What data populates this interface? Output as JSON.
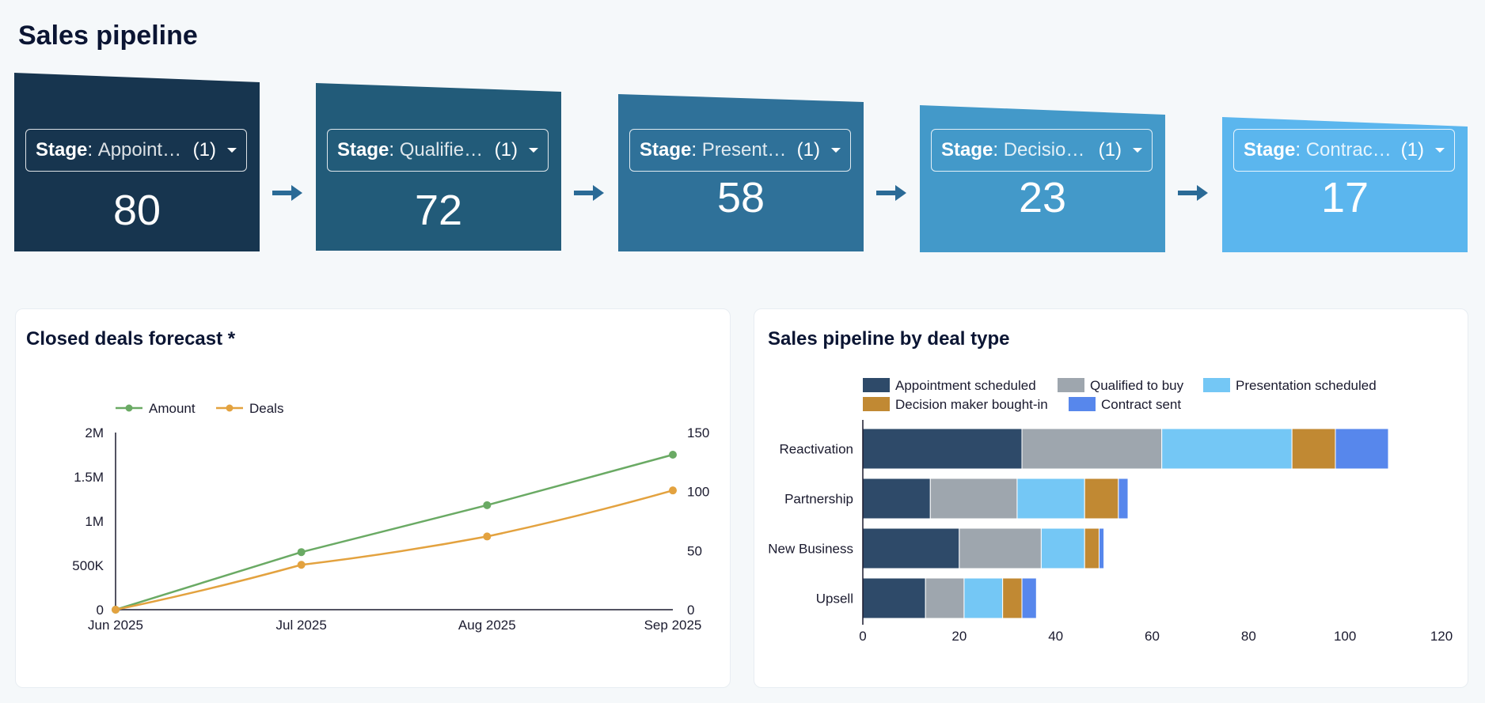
{
  "page_title": "Sales pipeline",
  "funnel": {
    "stages": [
      {
        "label": "Stage",
        "value": "Appointment scheduled",
        "count": "(1)",
        "number": "80",
        "color": "#17354f"
      },
      {
        "label": "Stage",
        "value": "Qualified to buy",
        "count": "(1)",
        "number": "72",
        "color": "#225b79"
      },
      {
        "label": "Stage",
        "value": "Presentation scheduled",
        "count": "(1)",
        "number": "58",
        "color": "#2f7199"
      },
      {
        "label": "Stage",
        "value": "Decision maker bought-in",
        "count": "(1)",
        "number": "23",
        "color": "#4399c9"
      },
      {
        "label": "Stage",
        "value": "Contract sent",
        "count": "(1)",
        "number": "17",
        "color": "#5bb6ee"
      }
    ],
    "arrow_color": "#2a6a96"
  },
  "panels": {
    "forecast_title": "Closed deals forecast *",
    "deal_type_title": "Sales pipeline by deal type"
  },
  "chart_data": [
    {
      "type": "line",
      "title": "Closed deals forecast *",
      "categories": [
        "Jun 2025",
        "Jul 2025",
        "Aug 2025",
        "Sep 2025"
      ],
      "series": [
        {
          "name": "Amount",
          "axis": "left",
          "color": "#6aaa64",
          "values": [
            0,
            650000,
            1180000,
            1750000
          ]
        },
        {
          "name": "Deals",
          "axis": "right",
          "color": "#e3a23f",
          "values": [
            0,
            38,
            62,
            101
          ]
        }
      ],
      "left_axis": {
        "min": 0,
        "max": 2000000,
        "ticks": [
          0,
          500000,
          1000000,
          1500000,
          2000000
        ],
        "tick_labels": [
          "0",
          "500K",
          "1M",
          "1.5M",
          "2M"
        ]
      },
      "right_axis": {
        "min": 0,
        "max": 150,
        "ticks": [
          0,
          50,
          100,
          150
        ],
        "tick_labels": [
          "0",
          "50",
          "100",
          "150"
        ]
      },
      "legend": "top-left",
      "grid": false
    },
    {
      "type": "bar",
      "orientation": "horizontal",
      "stacked": true,
      "title": "Sales pipeline by deal type",
      "categories": [
        "Reactivation",
        "Partnership",
        "New Business",
        "Upsell"
      ],
      "series": [
        {
          "name": "Appointment scheduled",
          "color": "#2e4a69",
          "values": [
            33,
            14,
            20,
            13
          ]
        },
        {
          "name": "Qualified to buy",
          "color": "#9ea6ae",
          "values": [
            29,
            18,
            17,
            8
          ]
        },
        {
          "name": "Presentation scheduled",
          "color": "#74c7f5",
          "values": [
            27,
            14,
            9,
            8
          ]
        },
        {
          "name": "Decision maker bought-in",
          "color": "#c18933",
          "values": [
            9,
            7,
            3,
            4
          ]
        },
        {
          "name": "Contract sent",
          "color": "#5787ec",
          "values": [
            11,
            2,
            1,
            3
          ]
        }
      ],
      "x_axis": {
        "min": 0,
        "max": 120,
        "ticks": [
          0,
          20,
          40,
          60,
          80,
          100,
          120
        ],
        "tick_labels": [
          "0",
          "20",
          "40",
          "60",
          "80",
          "100",
          "120"
        ]
      },
      "legend": "top",
      "grid": false
    }
  ]
}
